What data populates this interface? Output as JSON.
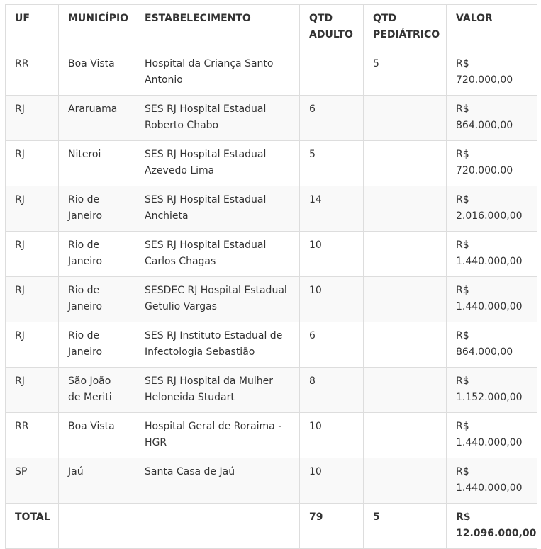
{
  "headers": [
    "UF",
    "MUNICÍPIO",
    "ESTABELECIMENTO",
    "QTD ADULTO",
    "QTD PEDIÁTRICO",
    "VALOR"
  ],
  "rows": [
    [
      "RR",
      "Boa Vista",
      "Hospital da Criança Santo Antonio",
      "",
      "5",
      "R$ 720.000,00"
    ],
    [
      "RJ",
      "Araruama",
      "SES RJ Hospital Estadual Roberto Chabo",
      "6",
      "",
      "R$ 864.000,00"
    ],
    [
      "RJ",
      "Niteroi",
      "SES RJ Hospital Estadual Azevedo Lima",
      "5",
      "",
      "R$ 720.000,00"
    ],
    [
      "RJ",
      "Rio de Janeiro",
      "SES RJ Hospital Estadual Anchieta",
      "14",
      "",
      "R$ 2.016.000,00"
    ],
    [
      "RJ",
      "Rio de Janeiro",
      "SES RJ Hospital Estadual Carlos Chagas",
      "10",
      "",
      "R$ 1.440.000,00"
    ],
    [
      "RJ",
      "Rio de Janeiro",
      "SESDEC RJ Hospital Estadual Getulio Vargas",
      "10",
      "",
      "R$ 1.440.000,00"
    ],
    [
      "RJ",
      "Rio de Janeiro",
      "SES RJ Instituto Estadual de Infectologia Sebastião",
      "6",
      "",
      "R$ 864.000,00"
    ],
    [
      "RJ",
      "São João de Meriti",
      "SES RJ Hospital da Mulher Heloneida Studart",
      "8",
      "",
      "R$ 1.152.000,00"
    ],
    [
      "RR",
      "Boa Vista",
      "Hospital Geral de Roraima - HGR",
      "10",
      "",
      "R$ 1.440.000,00"
    ],
    [
      "SP",
      "Jaú",
      "Santa Casa de Jaú",
      "10",
      "",
      "R$ 1.440.000,00"
    ]
  ],
  "total": [
    "TOTAL",
    "",
    "",
    "79",
    "5",
    "R$ 12.096.000,00"
  ]
}
